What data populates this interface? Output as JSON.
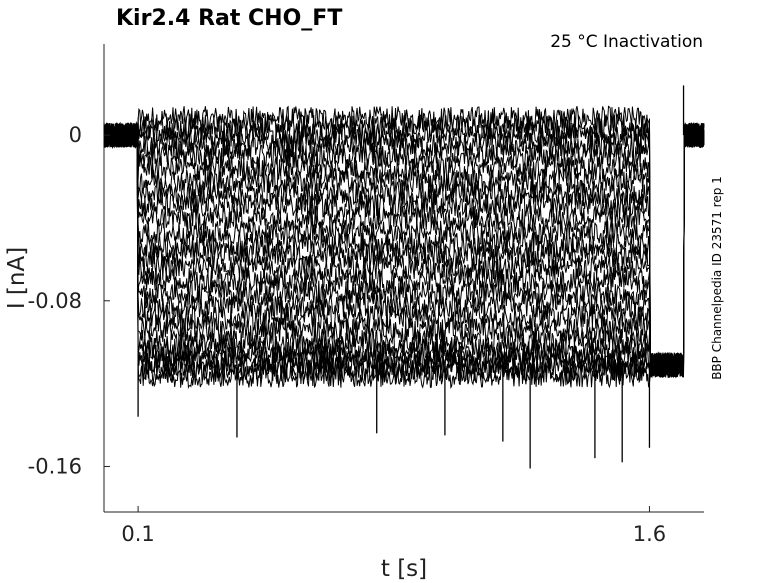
{
  "chart_data": {
    "type": "line",
    "title": "Kir2.4  Rat  CHO_FT",
    "condition": "25 °C  Inactivation",
    "side_label": "BBP Channelpedia ID 23571 rep 1",
    "xlabel": "t [s]",
    "ylabel": "I [nA]",
    "xlim": [
      0.0,
      1.76
    ],
    "ylim": [
      -0.182,
      0.044
    ],
    "xticks": [
      0.1,
      1.6
    ],
    "xtick_labels": [
      "0.1",
      "1.6"
    ],
    "yticks": [
      0,
      -0.08,
      -0.16
    ],
    "ytick_labels": [
      "0",
      "-0.08",
      "-0.16"
    ],
    "grid": false,
    "legend": "none",
    "protocol": {
      "holding_current": 0.0,
      "step_start": 0.1,
      "step_end": 1.6,
      "tail_start": 1.7,
      "tail_current": -0.111,
      "step_levels": [
        0.008,
        0.004,
        0.0,
        -0.005,
        -0.01,
        -0.016,
        -0.022,
        -0.028,
        -0.034,
        -0.04,
        -0.047,
        -0.053,
        -0.058,
        -0.064,
        -0.07,
        -0.076,
        -0.082,
        -0.088,
        -0.094,
        -0.1,
        -0.104,
        -0.107,
        -0.11,
        -0.113,
        -0.116
      ],
      "noise_amplitude_nA": 0.006
    },
    "spikes": [
      {
        "t": 0.1,
        "value": -0.136
      },
      {
        "t": 0.39,
        "value": -0.146
      },
      {
        "t": 0.8,
        "value": -0.144
      },
      {
        "t": 1.0,
        "value": -0.145
      },
      {
        "t": 1.17,
        "value": -0.148
      },
      {
        "t": 1.25,
        "value": -0.161
      },
      {
        "t": 1.44,
        "value": -0.156
      },
      {
        "t": 1.52,
        "value": -0.158
      },
      {
        "t": 1.6,
        "value": -0.151
      },
      {
        "t": 1.7,
        "value": 0.024
      }
    ]
  }
}
